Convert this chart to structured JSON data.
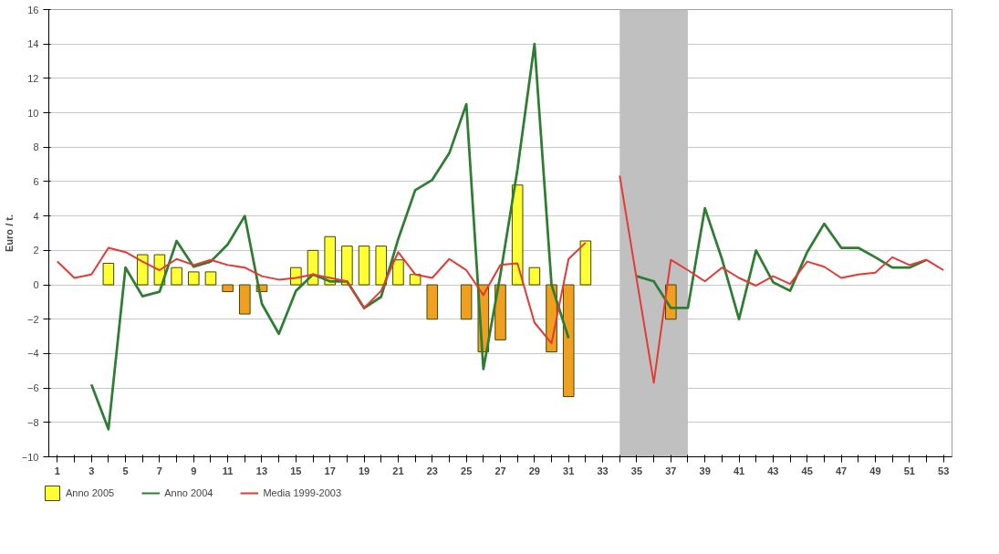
{
  "chart_data": {
    "type": "line",
    "ylabel": "Euro / t.",
    "x": [
      1,
      2,
      3,
      4,
      5,
      6,
      7,
      8,
      9,
      10,
      11,
      12,
      13,
      14,
      15,
      16,
      17,
      18,
      19,
      20,
      21,
      22,
      23,
      24,
      25,
      26,
      27,
      28,
      29,
      30,
      31,
      32,
      33,
      34,
      35,
      36,
      37,
      38,
      39,
      40,
      41,
      42,
      43,
      44,
      45,
      46,
      47,
      48,
      49,
      50,
      51,
      52,
      53
    ],
    "series": [
      {
        "name": "Anno 2005",
        "type": "bar",
        "colors": [
          "#ffff33",
          "#ffff33",
          "#ffff33",
          "#ffff33",
          "#ffff33",
          "#ffff33",
          "#ffff33",
          "#ffff33",
          "#ffff33",
          "#ffff33",
          "#f0a020",
          "#f0a020",
          "#f0a020",
          "#ffff33",
          "#ffff33",
          "#ffff33",
          "#ffff33",
          "#ffff33",
          "#ffff33",
          "#ffff33",
          "#ffff33",
          "#ffff33",
          "#f0a020",
          "#f0a020",
          "#f0a020",
          "#f0a020",
          "#f0a020",
          "#ffff33",
          "#ffff33",
          "#f0a020",
          "#f0a020",
          "#ffff33",
          "#ffff33",
          "#ffff33",
          "#ffff33",
          "#ffff33",
          "#f0a020",
          "#ffff33",
          "#ffff33",
          "#ffff33",
          "#ffff33",
          "#ffff33",
          "#ffff33",
          "#ffff33",
          "#ffff33",
          "#ffff33",
          "#ffff33",
          "#ffff33",
          "#ffff33",
          "#ffff33",
          "#ffff33",
          "#ffff33",
          "#ffff33"
        ],
        "values": [
          null,
          null,
          null,
          1.25,
          null,
          1.75,
          1.75,
          1.0,
          0.75,
          0.75,
          -0.4,
          -1.7,
          -0.4,
          null,
          1.0,
          2.0,
          2.8,
          2.25,
          2.25,
          2.25,
          1.45,
          0.6,
          -2.0,
          null,
          -2.0,
          -3.9,
          -3.2,
          5.8,
          1.0,
          -3.9,
          -6.5,
          2.55,
          null,
          null,
          null,
          null,
          -2.0,
          null,
          null,
          null,
          null,
          null,
          null,
          null,
          null,
          null,
          null,
          null,
          null,
          null,
          null,
          null,
          null
        ]
      },
      {
        "name": "Anno 2004",
        "color": "#2e7d32",
        "values": [
          null,
          null,
          -5.8,
          -8.4,
          1.0,
          -0.67,
          -0.4,
          2.55,
          1.05,
          1.35,
          2.35,
          4.0,
          -1.1,
          -2.85,
          -0.35,
          0.6,
          0.2,
          0.2,
          -1.35,
          -0.7,
          2.65,
          5.5,
          6.1,
          7.65,
          10.5,
          -4.9,
          0.6,
          6.7,
          14.0,
          0.0,
          -3.1,
          null,
          null,
          null,
          0.5,
          0.2,
          -1.35,
          -1.35,
          4.45,
          1.5,
          -2.0,
          2.0,
          0.15,
          -0.35,
          1.9,
          3.55,
          2.15,
          2.15,
          1.6,
          1.0,
          1.0,
          1.45,
          null
        ]
      },
      {
        "name": "Media 1999-2003",
        "color": "#e53935",
        "values": [
          1.35,
          0.4,
          0.6,
          2.15,
          1.9,
          1.35,
          0.85,
          1.5,
          1.15,
          1.45,
          1.15,
          1.0,
          0.5,
          0.3,
          0.4,
          0.6,
          0.4,
          0.2,
          -1.35,
          -0.35,
          1.9,
          0.6,
          0.4,
          1.5,
          0.85,
          -0.6,
          1.15,
          1.25,
          -2.2,
          -3.4,
          1.5,
          2.45,
          null,
          6.35,
          0.3,
          -5.7,
          1.45,
          0.85,
          0.2,
          1.0,
          0.4,
          -0.05,
          0.5,
          0.05,
          1.35,
          1.05,
          0.4,
          0.6,
          0.7,
          1.6,
          1.15,
          1.45,
          0.85
        ]
      }
    ],
    "xlim": [
      0.5,
      53.5
    ],
    "xticks": [
      1,
      {
        "value": 2,
        "label": null
      },
      3,
      {
        "value": 4,
        "label": null
      },
      5,
      {
        "value": 6,
        "label": null
      },
      7,
      {
        "value": 8,
        "label": null
      },
      9,
      {
        "value": 10,
        "label": null
      },
      11,
      {
        "value": 12,
        "label": null
      },
      13,
      {
        "value": 14,
        "label": null
      },
      15,
      {
        "value": 16,
        "label": null
      },
      17,
      {
        "value": 18,
        "label": null
      },
      19,
      {
        "value": 20,
        "label": null
      },
      21,
      {
        "value": 22,
        "label": null
      },
      23,
      {
        "value": 24,
        "label": null
      },
      25,
      {
        "value": 26,
        "label": null
      },
      27,
      {
        "value": 28,
        "label": null
      },
      29,
      {
        "value": 30,
        "label": null
      },
      31,
      {
        "value": 32,
        "label": null
      },
      33,
      {
        "value": 34,
        "label": null
      },
      35,
      {
        "value": 36,
        "label": null
      },
      37,
      {
        "value": 38,
        "label": null
      },
      39,
      {
        "value": 40,
        "label": null
      },
      41,
      {
        "value": 42,
        "label": null
      },
      43,
      {
        "value": 44,
        "label": null
      },
      45,
      {
        "value": 46,
        "label": null
      },
      47,
      {
        "value": 48,
        "label": null
      },
      49,
      {
        "value": 50,
        "label": null
      },
      51,
      {
        "value": 52,
        "label": null
      },
      53
    ],
    "ylim": [
      -10,
      16
    ],
    "yticks": [
      -10,
      -8,
      -6,
      -4,
      -2,
      0,
      2,
      4,
      6,
      8,
      10,
      12,
      14,
      16
    ],
    "bands": [
      {
        "axis": "x",
        "from": 34,
        "to": 38,
        "color": "#c0c0c0"
      }
    ],
    "grid": "y",
    "legend": "bottom",
    "line_style": "solid",
    "marker": "none"
  }
}
